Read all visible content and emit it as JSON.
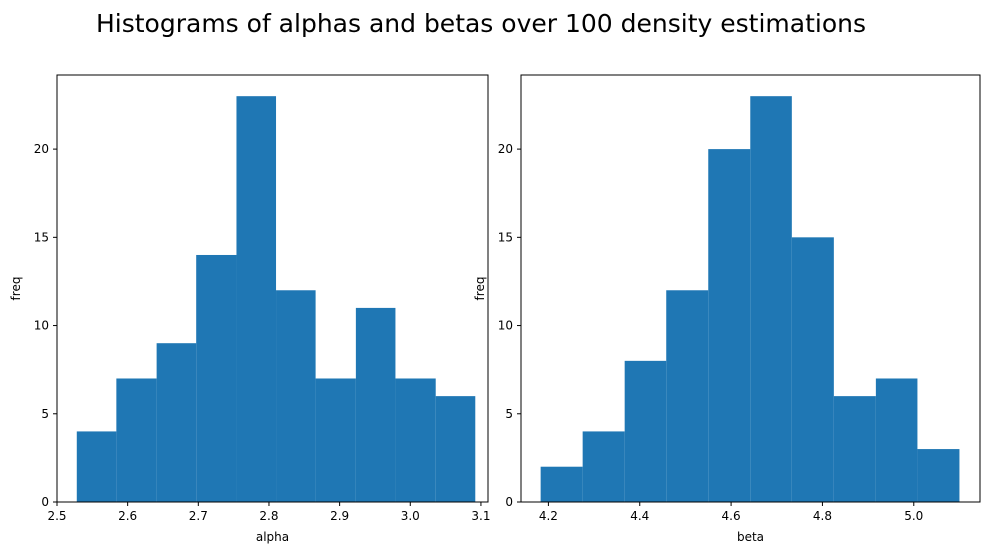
{
  "figure": {
    "suptitle": "Histograms of alphas and betas over 100 density estimations"
  },
  "chart_data": [
    {
      "type": "bar",
      "histogram": true,
      "bar_color": "#1f77b4",
      "xlabel": "alpha",
      "ylabel": "freq",
      "xlim": [
        2.5,
        3.11
      ],
      "ylim": [
        0,
        24.2
      ],
      "xticks": [
        "2.5",
        "2.6",
        "2.7",
        "2.8",
        "2.9",
        "3.0",
        "3.1"
      ],
      "yticks": [
        "0",
        "5",
        "10",
        "15",
        "20"
      ],
      "bins": [
        {
          "x0": 2.528,
          "x1": 2.584,
          "count": 4
        },
        {
          "x0": 2.584,
          "x1": 2.641,
          "count": 7
        },
        {
          "x0": 2.641,
          "x1": 2.697,
          "count": 9
        },
        {
          "x0": 2.697,
          "x1": 2.754,
          "count": 14
        },
        {
          "x0": 2.754,
          "x1": 2.81,
          "count": 23
        },
        {
          "x0": 2.81,
          "x1": 2.866,
          "count": 12
        },
        {
          "x0": 2.866,
          "x1": 2.923,
          "count": 7
        },
        {
          "x0": 2.923,
          "x1": 2.979,
          "count": 11
        },
        {
          "x0": 2.979,
          "x1": 3.036,
          "count": 7
        },
        {
          "x0": 3.036,
          "x1": 3.092,
          "count": 6
        }
      ]
    },
    {
      "type": "bar",
      "histogram": true,
      "bar_color": "#1f77b4",
      "xlabel": "beta",
      "ylabel": "freq",
      "xlim": [
        4.14,
        5.145
      ],
      "ylim": [
        0,
        24.2
      ],
      "xticks": [
        "4.2",
        "4.4",
        "4.6",
        "4.8",
        "5.0"
      ],
      "yticks": [
        "0",
        "5",
        "10",
        "15",
        "20"
      ],
      "bins": [
        {
          "x0": 4.183,
          "x1": 4.275,
          "count": 2
        },
        {
          "x0": 4.275,
          "x1": 4.367,
          "count": 4
        },
        {
          "x0": 4.367,
          "x1": 4.458,
          "count": 8
        },
        {
          "x0": 4.458,
          "x1": 4.55,
          "count": 12
        },
        {
          "x0": 4.55,
          "x1": 4.642,
          "count": 20
        },
        {
          "x0": 4.642,
          "x1": 4.733,
          "count": 23
        },
        {
          "x0": 4.733,
          "x1": 4.825,
          "count": 15
        },
        {
          "x0": 4.825,
          "x1": 4.917,
          "count": 6
        },
        {
          "x0": 4.917,
          "x1": 5.008,
          "count": 7
        },
        {
          "x0": 5.008,
          "x1": 5.1,
          "count": 3
        }
      ]
    }
  ]
}
